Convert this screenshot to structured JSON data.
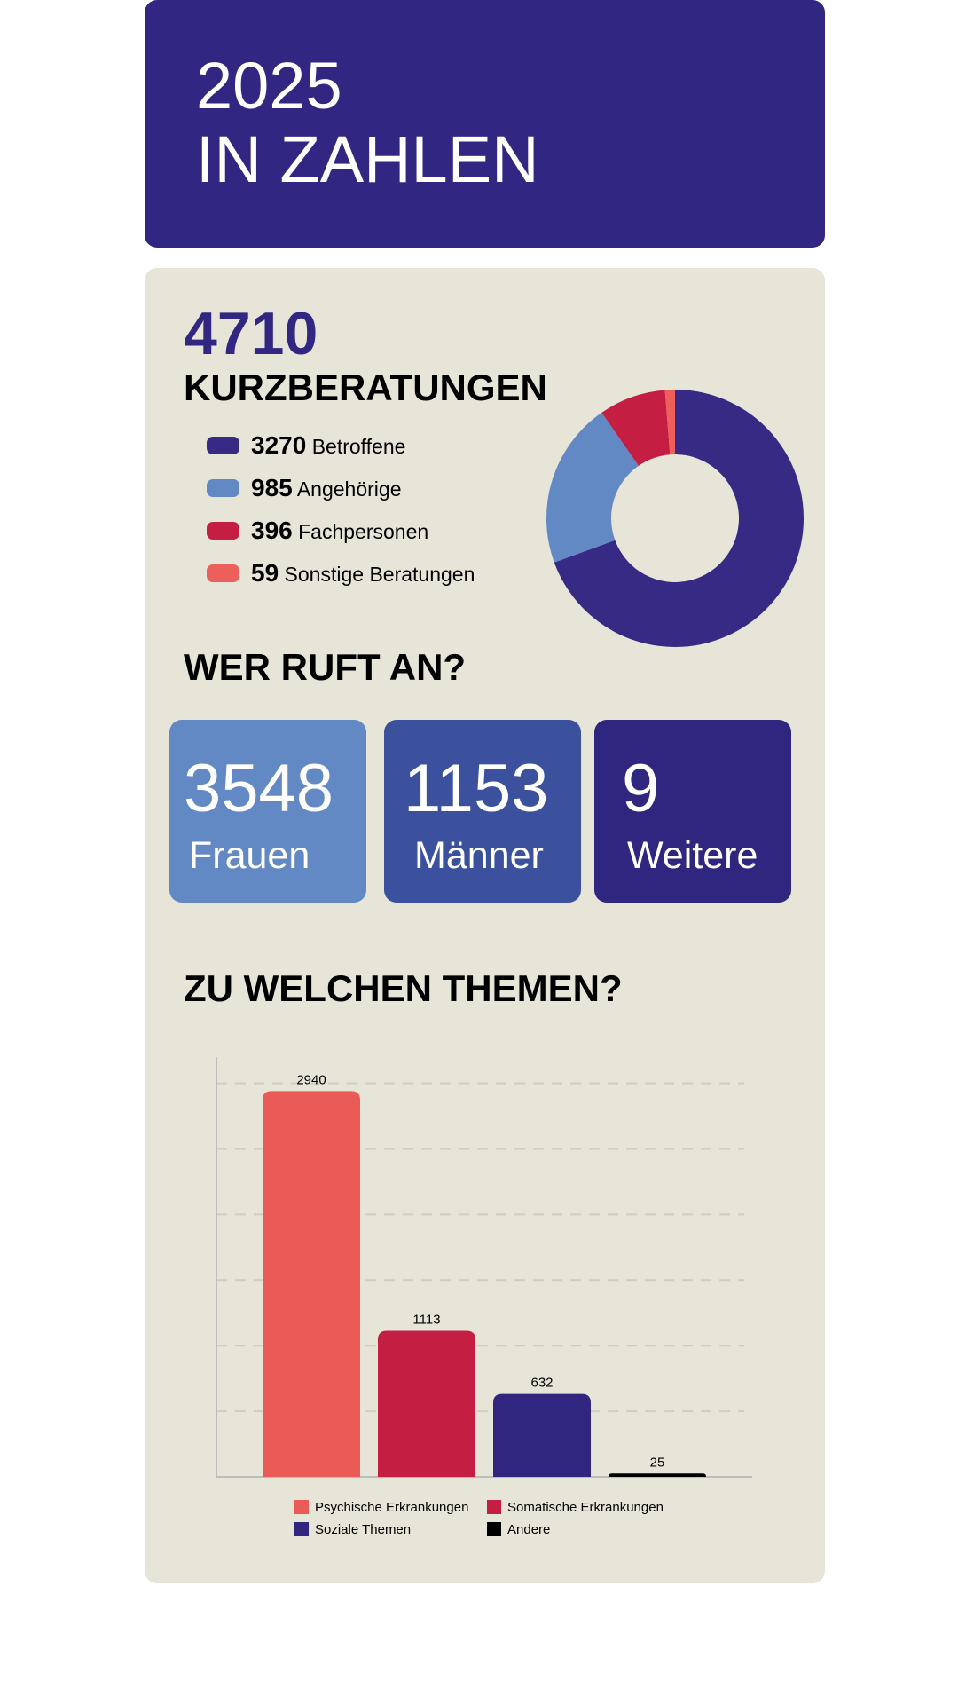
{
  "header": {
    "lines": [
      "2025",
      "IN ZAHLEN"
    ]
  },
  "callers": {
    "title": "WER RUFT AN?",
    "items": [
      {
        "value": 3548,
        "label": "Frauen"
      },
      {
        "value": 1153,
        "label": "Männer"
      },
      {
        "value": 9,
        "label": "Weitere"
      }
    ]
  },
  "chart_data": [
    {
      "type": "pie",
      "total": 4710,
      "title": "KURZBERATUNGEN",
      "categories": [
        "Betroffene",
        "Angehörige",
        "Fachpersonen",
        "Sonstige Beratungen"
      ],
      "values": [
        3270,
        985,
        396,
        59
      ],
      "colors": [
        "#372a85",
        "#6289c4",
        "#c41f43",
        "#ec5f5b"
      ]
    },
    {
      "type": "bar",
      "title": "ZU WELCHEN THEMEN?",
      "categories": [
        null
      ],
      "series": [
        {
          "name": "Psychische Erkrankungen",
          "color": "#ea5b58",
          "values": [
            2940
          ]
        },
        {
          "name": "Somatische Erkrankungen",
          "color": "#c41e42",
          "values": [
            1113
          ]
        },
        {
          "name": "Soziale Themen",
          "color": "#302680",
          "values": [
            632
          ]
        },
        {
          "name": "Andere",
          "color": "#000000",
          "values": [
            25
          ]
        }
      ],
      "ylim": [
        0,
        3200
      ],
      "yticks": [
        0,
        500,
        1000,
        1500,
        2000,
        2500,
        3000
      ],
      "grid": true
    }
  ]
}
